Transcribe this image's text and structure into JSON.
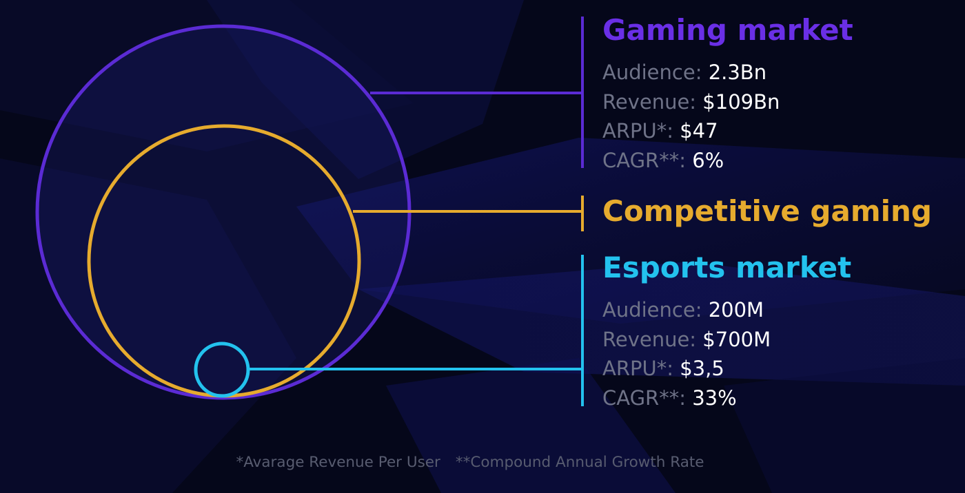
{
  "colors": {
    "background": "#05071a",
    "gaming": "#5b2bd4",
    "gaming_title": "#6a2fe6",
    "competitive": "#e6ab2e",
    "esports": "#23c2ee",
    "label_gray": "#6f7388",
    "value_white": "#ffffff",
    "footnote_gray": "#585c70"
  },
  "gaming_market": {
    "title": "Gaming market",
    "stats": [
      {
        "label": "Audience:",
        "value": "2.3Bn"
      },
      {
        "label": "Revenue:",
        "value": "$109Bn"
      },
      {
        "label": "ARPU*:",
        "value": "$47"
      },
      {
        "label": "CAGR**:",
        "value": "6%"
      }
    ]
  },
  "competitive_gaming": {
    "title": "Competitive gaming"
  },
  "esports_market": {
    "title": "Esports market",
    "stats": [
      {
        "label": "Audience:",
        "value": "200M"
      },
      {
        "label": "Revenue:",
        "value": "$700M"
      },
      {
        "label": "ARPU*:",
        "value": "$3,5"
      },
      {
        "label": "CAGR**:",
        "value": "33%"
      }
    ]
  },
  "footnotes": {
    "arpu": "*Avarage Revenue Per User",
    "cagr": "**Compound Annual Growth Rate"
  }
}
